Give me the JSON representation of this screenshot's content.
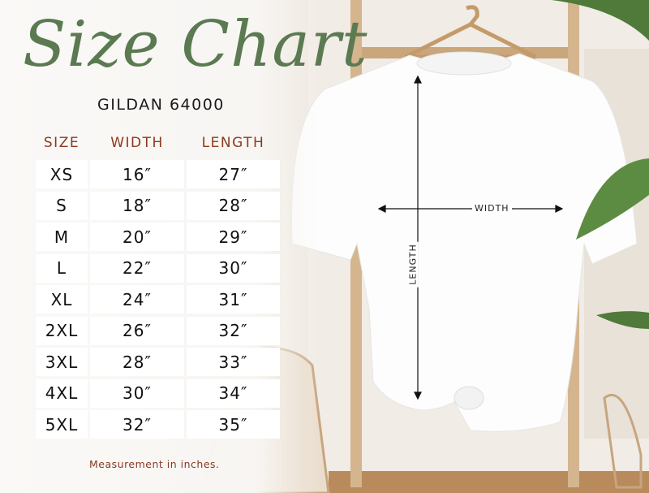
{
  "title": "Size Chart",
  "subtitle": "GILDAN 64000",
  "table": {
    "headers": [
      "SIZE",
      "WIDTH",
      "LENGTH"
    ],
    "rows": [
      [
        "XS",
        "16″",
        "27″"
      ],
      [
        "S",
        "18″",
        "28″"
      ],
      [
        "M",
        "20″",
        "29″"
      ],
      [
        "L",
        "22″",
        "30″"
      ],
      [
        "XL",
        "24″",
        "31″"
      ],
      [
        "2XL",
        "26″",
        "32″"
      ],
      [
        "3XL",
        "28″",
        "33″"
      ],
      [
        "4XL",
        "30″",
        "34″"
      ],
      [
        "5XL",
        "32″",
        "35″"
      ]
    ]
  },
  "footer": "Measurement in inches.",
  "diagram": {
    "width_label": "WIDTH",
    "length_label": "LENGTH"
  },
  "colors": {
    "title": "#5b7a52",
    "accent": "#8b3a1e"
  }
}
